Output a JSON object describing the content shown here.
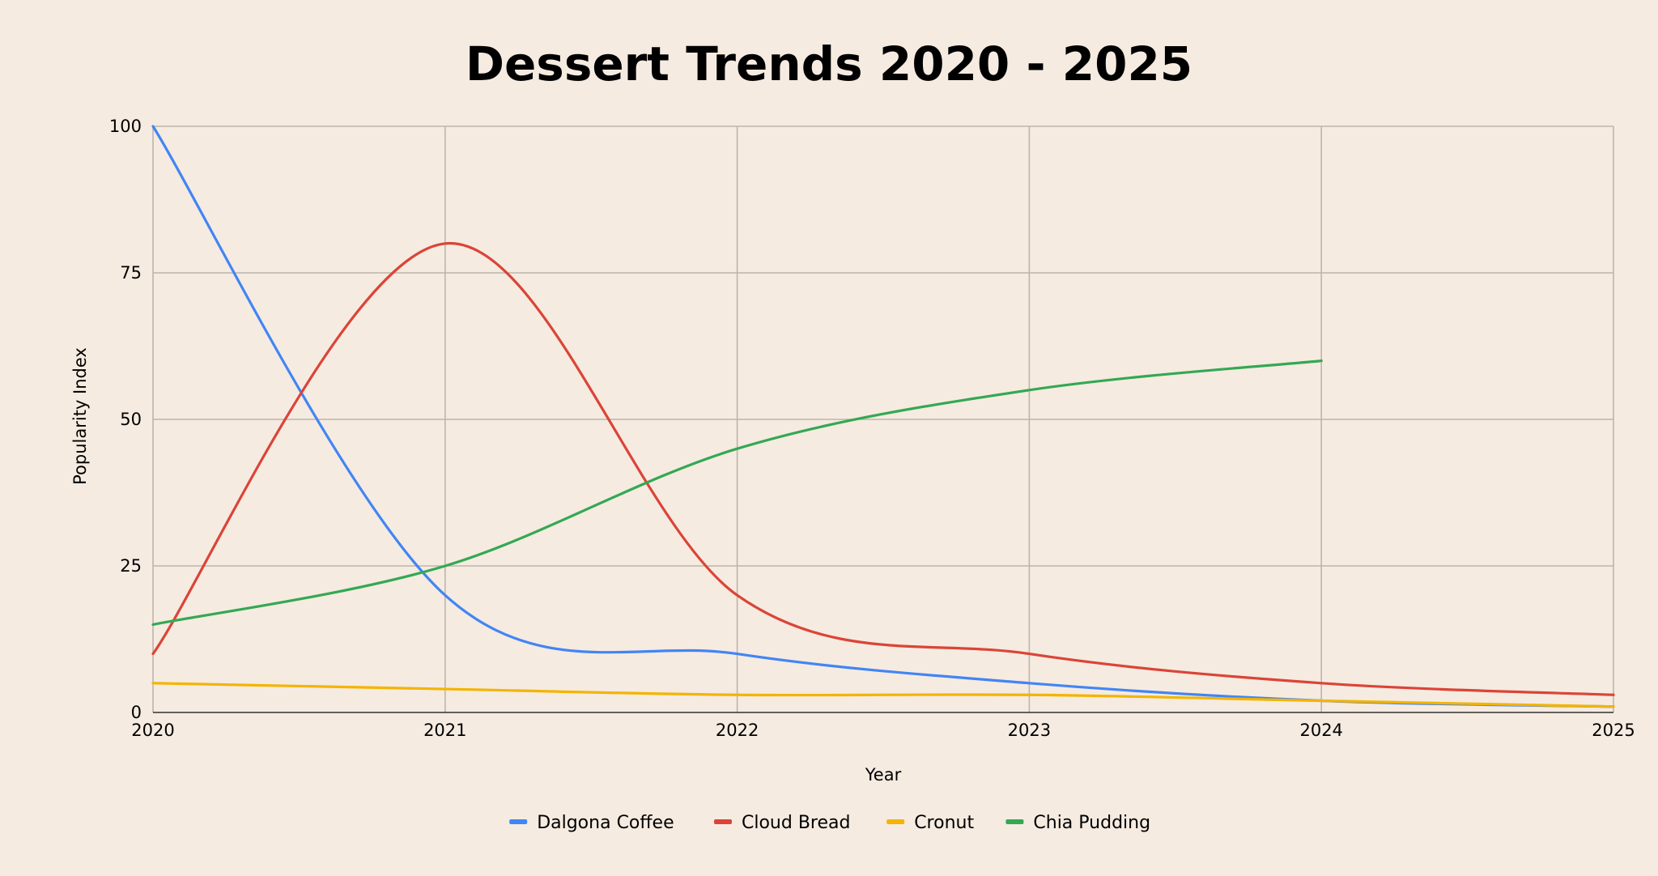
{
  "chart_data": {
    "type": "line",
    "title": "Dessert Trends 2020 - 2025",
    "xlabel": "Year",
    "ylabel": "Popularity Index",
    "x": [
      2020,
      2021,
      2022,
      2023,
      2024,
      2025
    ],
    "x_ticks": [
      "2020",
      "2021",
      "2022",
      "2023",
      "2024",
      "2025"
    ],
    "ylim": [
      0,
      100
    ],
    "y_ticks": [
      "0",
      "25",
      "50",
      "75",
      "100"
    ],
    "grid": true,
    "legend_position": "bottom",
    "series": [
      {
        "name": "Dalgona Coffee",
        "color": "#4285f4",
        "values": [
          100,
          20,
          10,
          5,
          2,
          1
        ]
      },
      {
        "name": "Cloud Bread",
        "color": "#db4437",
        "values": [
          10,
          80,
          20,
          10,
          5,
          3
        ]
      },
      {
        "name": "Cronut",
        "color": "#f4b400",
        "values": [
          5,
          4,
          3,
          3,
          2,
          1
        ]
      },
      {
        "name": "Chia Pudding",
        "color": "#34a853",
        "values": [
          15,
          25,
          45,
          55,
          60,
          null
        ]
      }
    ]
  }
}
